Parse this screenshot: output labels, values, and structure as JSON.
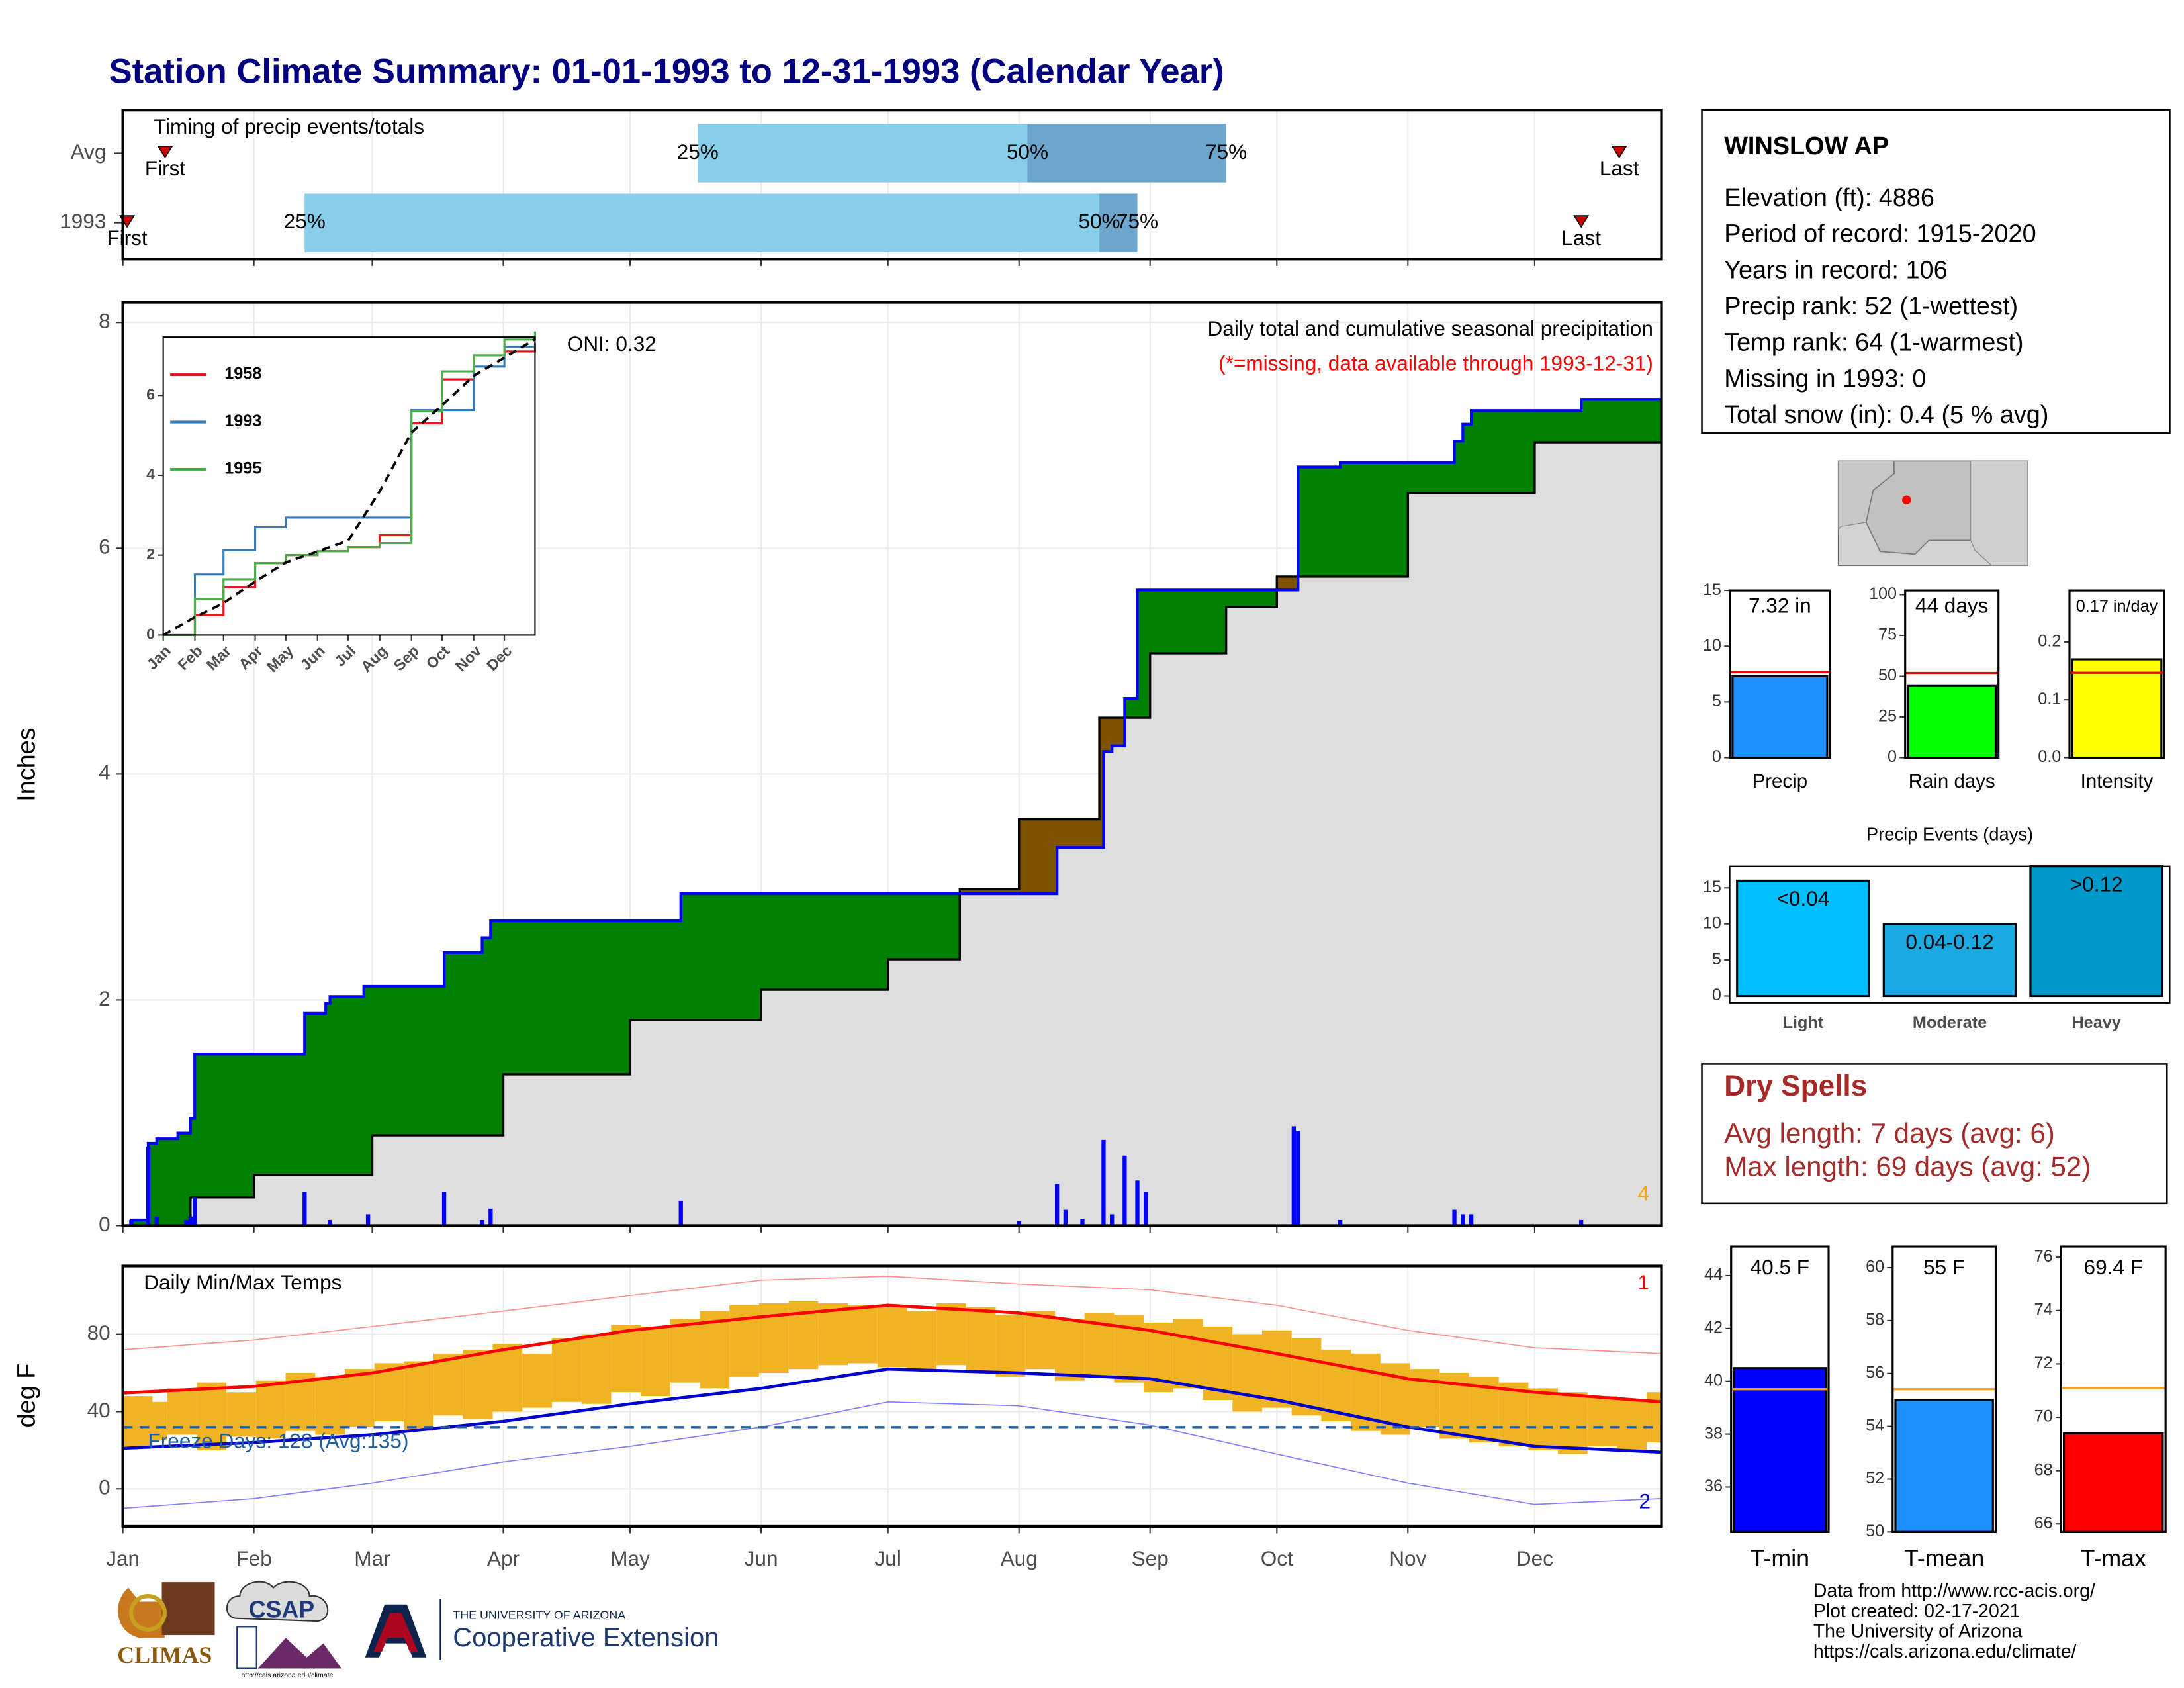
{
  "title": "Station Climate Summary: 01-01-1993 to 12-31-1993 (Calendar Year)",
  "chart_data": [
    {
      "type": "timing",
      "label": "Timing of precip events/totals",
      "categories": [
        "Avg",
        "1993"
      ],
      "marker_labels": {
        "first": "First",
        "q25": "25%",
        "q50": "50%",
        "q75": "75%",
        "last": "Last"
      },
      "rows": [
        {
          "first": 11,
          "q25": 137,
          "q50": 215,
          "q75": 262,
          "last": 355
        },
        {
          "first": 2,
          "q25": 44,
          "q50": 232,
          "q75": 241,
          "last": 346
        }
      ],
      "colors": {
        "q25": "#87ceeb",
        "q50": "#6ca6cd"
      }
    },
    {
      "type": "area",
      "ylabel": "Inches",
      "ylim": [
        0,
        8.18
      ],
      "yticks": [
        0,
        2,
        4,
        6,
        8
      ],
      "annotations": [
        "Daily total and cumulative seasonal precipitation",
        "(*=missing, data available through 1993-12-31)",
        "ONI: 0.32"
      ],
      "corner_label": "4",
      "cumulative": {
        "color": "#0000ff",
        "x": [
          1,
          3,
          7,
          9,
          14,
          17,
          18,
          42,
          44,
          49,
          50,
          58,
          77,
          86,
          88,
          133,
          222,
          231,
          233,
          235,
          238,
          241,
          279,
          289,
          316,
          318,
          320,
          346,
          365
        ],
        "values": [
          0,
          0.05,
          0.73,
          0.77,
          0.82,
          0.95,
          1.52,
          1.52,
          1.88,
          1.97,
          2.03,
          2.12,
          2.42,
          2.55,
          2.7,
          2.94,
          3.35,
          3.35,
          4.2,
          4.25,
          4.67,
          5.63,
          6.72,
          6.76,
          6.95,
          7.1,
          7.22,
          7.32,
          7.32
        ]
      },
      "average": {
        "x": [
          1,
          17,
          32,
          60,
          91,
          121,
          152,
          182,
          199,
          213,
          232,
          244,
          262,
          274,
          305,
          335,
          365
        ],
        "values": [
          0,
          0.25,
          0.45,
          0.8,
          1.34,
          1.82,
          2.09,
          2.36,
          2.98,
          3.6,
          4.5,
          5.07,
          5.48,
          5.75,
          6.49,
          6.94,
          7.41
        ]
      },
      "daily": {
        "color": "#0000ff",
        "x": [
          3,
          7,
          9,
          16,
          17,
          18,
          44,
          50,
          59,
          77,
          86,
          88,
          133,
          213,
          222,
          224,
          228,
          233,
          235,
          238,
          241,
          243,
          278,
          279,
          289,
          316,
          318,
          320,
          346
        ],
        "values": [
          0.05,
          0.7,
          0.08,
          0.05,
          0.08,
          0.25,
          0.3,
          0.05,
          0.1,
          0.3,
          0.05,
          0.15,
          0.22,
          0.04,
          0.37,
          0.14,
          0.06,
          0.76,
          0.1,
          0.62,
          0.4,
          0.3,
          0.88,
          0.84,
          0.05,
          0.14,
          0.1,
          0.1,
          0.05
        ]
      },
      "colors": {
        "above": "#008000",
        "below": "#7f5200",
        "normal": "#dedede"
      }
    },
    {
      "type": "line",
      "ylim": [
        0,
        7.46
      ],
      "yticks": [
        0,
        2,
        4,
        6
      ],
      "x": [
        1,
        32,
        60,
        91,
        121,
        152,
        182,
        213,
        244,
        274,
        305,
        335,
        365
      ],
      "xticks": [
        {
          "value": 1,
          "label": "Jan"
        },
        {
          "value": 32,
          "label": "Feb"
        },
        {
          "value": 60,
          "label": "Mar"
        },
        {
          "value": 91,
          "label": "Apr"
        },
        {
          "value": 121,
          "label": "May"
        },
        {
          "value": 152,
          "label": "Jun"
        },
        {
          "value": 182,
          "label": "Jul"
        },
        {
          "value": 213,
          "label": "Aug"
        },
        {
          "value": 244,
          "label": "Sep"
        },
        {
          "value": 274,
          "label": "Oct"
        },
        {
          "value": 305,
          "label": "Nov"
        },
        {
          "value": 335,
          "label": "Dec"
        }
      ],
      "series": [
        {
          "name": "1958",
          "color": "#e41a1c",
          "values": [
            0,
            0.5,
            1.2,
            1.8,
            2.0,
            2.1,
            2.2,
            2.5,
            5.3,
            6.4,
            7.0,
            7.1,
            7.3
          ]
        },
        {
          "name": "1993",
          "color": "#377eb8",
          "values": [
            0,
            1.52,
            2.12,
            2.7,
            2.94,
            2.94,
            2.94,
            2.94,
            5.63,
            5.63,
            6.72,
            7.22,
            7.32
          ]
        },
        {
          "name": "1995",
          "color": "#4daf4a",
          "values": [
            0,
            0.9,
            1.4,
            1.8,
            2.0,
            2.1,
            2.2,
            2.3,
            5.6,
            6.6,
            7.0,
            7.4,
            7.6
          ]
        }
      ],
      "average": {
        "color": "#000000",
        "values": [
          0,
          0.45,
          0.8,
          1.34,
          1.82,
          2.09,
          2.36,
          3.6,
          5.07,
          5.75,
          6.49,
          6.94,
          7.41
        ]
      }
    },
    {
      "type": "range",
      "label": "Daily Min/Max Temps",
      "ylabel": "deg F",
      "ylim": [
        -19.4,
        115.3
      ],
      "yticks": [
        0,
        40,
        80
      ],
      "xlim": [
        1,
        365
      ],
      "xticks": [
        {
          "value": 1,
          "label": "Jan"
        },
        {
          "value": 32,
          "label": "Feb"
        },
        {
          "value": 60,
          "label": "Mar"
        },
        {
          "value": 91,
          "label": "Apr"
        },
        {
          "value": 121,
          "label": "May"
        },
        {
          "value": 152,
          "label": "Jun"
        },
        {
          "value": 182,
          "label": "Jul"
        },
        {
          "value": 213,
          "label": "Aug"
        },
        {
          "value": 244,
          "label": "Sep"
        },
        {
          "value": 274,
          "label": "Oct"
        },
        {
          "value": 305,
          "label": "Nov"
        },
        {
          "value": 335,
          "label": "Dec"
        }
      ],
      "x": [
        1,
        8,
        15,
        22,
        29,
        36,
        43,
        50,
        57,
        64,
        71,
        78,
        85,
        92,
        99,
        106,
        113,
        120,
        127,
        134,
        141,
        148,
        155,
        162,
        169,
        176,
        183,
        190,
        197,
        204,
        211,
        218,
        225,
        232,
        239,
        246,
        253,
        260,
        267,
        274,
        281,
        288,
        295,
        302,
        309,
        316,
        323,
        330,
        337,
        344,
        351,
        358,
        365
      ],
      "tmax": [
        48,
        45,
        52,
        55,
        50,
        56,
        60,
        58,
        62,
        65,
        66,
        70,
        72,
        75,
        70,
        78,
        80,
        85,
        84,
        88,
        92,
        95,
        96,
        97,
        96,
        95,
        94,
        92,
        96,
        94,
        90,
        92,
        88,
        91,
        90,
        86,
        88,
        84,
        80,
        82,
        78,
        72,
        70,
        65,
        62,
        60,
        58,
        55,
        52,
        50,
        48,
        46,
        50
      ],
      "tmin": [
        22,
        25,
        28,
        20,
        27,
        26,
        30,
        28,
        32,
        35,
        30,
        38,
        36,
        40,
        42,
        45,
        44,
        50,
        48,
        55,
        52,
        58,
        60,
        62,
        64,
        65,
        63,
        62,
        64,
        60,
        58,
        62,
        56,
        58,
        55,
        50,
        52,
        46,
        40,
        42,
        38,
        35,
        30,
        28,
        32,
        26,
        24,
        22,
        20,
        18,
        22,
        20,
        24
      ],
      "bar_color": "#f0b323",
      "normals_x": [
        1,
        32,
        60,
        91,
        121,
        152,
        182,
        213,
        244,
        274,
        305,
        335,
        365
      ],
      "normal_max": {
        "color": "#ff0000",
        "values": [
          49.6,
          53,
          60,
          72,
          82,
          89,
          95,
          91,
          82,
          70,
          57,
          50,
          45
        ]
      },
      "normal_min": {
        "color": "#0000cd",
        "values": [
          21,
          24,
          28,
          35,
          44,
          52,
          62,
          60,
          57,
          46,
          32,
          22,
          19
        ]
      },
      "record_max": {
        "color": "#ff9090",
        "values": [
          72,
          77,
          84,
          92,
          100,
          108,
          110,
          106,
          103,
          95,
          82,
          73,
          70
        ]
      },
      "record_min": {
        "color": "#8080ff",
        "values": [
          -10,
          -5,
          3,
          14,
          22,
          32,
          45,
          43,
          33,
          18,
          3,
          -8,
          -5
        ]
      },
      "freeze_line": 32,
      "freeze_label": "Freeze Days: 128 (Avg:135)",
      "corner_labels": [
        "1",
        "2"
      ]
    },
    {
      "type": "bar",
      "categories": [
        "Precip"
      ],
      "values": [
        7.32
      ],
      "value_labels": [
        "7.32 in"
      ],
      "average": 7.7,
      "color": "#1e90ff",
      "average_color": "#ff0000",
      "ylim": [
        0,
        15
      ],
      "yticks": [
        0,
        5,
        10,
        15
      ]
    },
    {
      "type": "bar",
      "categories": [
        "Rain days"
      ],
      "values": [
        44
      ],
      "value_labels": [
        "44 days"
      ],
      "average": 52,
      "color": "#00ff00",
      "average_color": "#ff0000",
      "ylim": [
        0,
        102.6
      ],
      "yticks": [
        0,
        25,
        50,
        75,
        100
      ]
    },
    {
      "type": "bar",
      "categories": [
        "Intensity"
      ],
      "values": [
        0.17
      ],
      "value_labels": [
        "0.17 in/day"
      ],
      "average": 0.147,
      "color": "#ffff00",
      "average_color": "#ff0000",
      "ylim": [
        0,
        0.289
      ],
      "yticks": [
        {
          "value": 0,
          "label": "0.0"
        },
        {
          "value": 0.1,
          "label": "0.1"
        },
        {
          "value": 0.2,
          "label": "0.2"
        }
      ]
    },
    {
      "type": "events",
      "title": "Precip Events (days)",
      "categories": [
        "Light",
        "Moderate",
        "Heavy"
      ],
      "bin_labels": [
        "<0.04",
        "0.04-0.12",
        ">0.12"
      ],
      "values": [
        16,
        10,
        18
      ],
      "colors": [
        "#00bfff",
        "#1aa9e0",
        "#0099cc"
      ],
      "ylim": [
        -0.95,
        18
      ],
      "yticks": [
        0,
        5,
        10,
        15
      ]
    },
    {
      "type": "bar",
      "categories": [
        "T-min"
      ],
      "values": [
        40.5
      ],
      "value_labels": [
        "40.5 F"
      ],
      "average": 39.7,
      "color": "#0000ff",
      "average_color": "#ffa500",
      "ylim": [
        34.3,
        45.1
      ],
      "yticks": [
        36,
        38,
        40,
        42,
        44
      ]
    },
    {
      "type": "bar",
      "categories": [
        "T-mean"
      ],
      "values": [
        55
      ],
      "value_labels": [
        "55 F"
      ],
      "average": 55.4,
      "color": "#1e90ff",
      "average_color": "#ffa500",
      "ylim": [
        50,
        60.8
      ],
      "yticks": [
        50,
        52,
        54,
        56,
        58,
        60
      ]
    },
    {
      "type": "bar",
      "categories": [
        "T-max"
      ],
      "values": [
        69.4
      ],
      "value_labels": [
        "69.4 F"
      ],
      "average": 71.1,
      "color": "#ff0000",
      "average_color": "#ffa500",
      "ylim": [
        65.7,
        76.4
      ],
      "yticks": [
        66,
        68,
        70,
        72,
        74,
        76
      ]
    }
  ],
  "station": {
    "name": "WINSLOW AP",
    "lines": [
      "Elevation (ft): 4886",
      "Period of record: 1915-2020",
      "Years in record: 106",
      "Precip rank: 52 (1-wettest)",
      "Temp rank: 64 (1-warmest)",
      "Missing in 1993: 0",
      "Total snow (in): 0.4 (5 % avg)"
    ]
  },
  "dry_spells": {
    "title": "Dry Spells",
    "lines": [
      "Avg length: 7 days (avg: 6)",
      "Max length: 69 days (avg: 52)"
    ]
  },
  "footer": [
    "Data from http://www.rcc-acis.org/",
    "Plot created: 02-17-2021",
    "The University of Arizona",
    "https://cals.arizona.edu/climate/"
  ],
  "logos": {
    "climas": "CLIMAS",
    "csap": "CSAP",
    "csap_url": "http://cals.arizona.edu/climate",
    "ua": "THE UNIVERSITY OF ARIZONA",
    "extension": "Cooperative Extension"
  }
}
